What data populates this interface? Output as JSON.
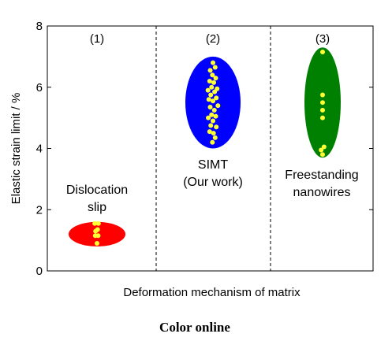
{
  "chart_data": {
    "type": "scatter",
    "title": "",
    "xlabel": "Deformation mechanism of matrix",
    "ylabel": "Elastic strain limit / %",
    "ylim": [
      0,
      8
    ],
    "yticks": [
      "0",
      "2",
      "4",
      "6",
      "8"
    ],
    "caption": "Color online",
    "colors": {
      "point": "#ffff33",
      "grid": "#000000"
    },
    "groups": [
      {
        "index_label": "(1)",
        "label_lines": [
          "Dislocation",
          "slip"
        ],
        "color": "#ff0000",
        "ellipse": {
          "y_min": 0.8,
          "y_max": 1.6
        },
        "points": [
          {
            "dx": -0.08,
            "y": 1.55
          },
          {
            "dx": 0.05,
            "y": 1.55
          },
          {
            "dx": -0.05,
            "y": 1.3
          },
          {
            "dx": 0.02,
            "y": 1.35
          },
          {
            "dx": -0.06,
            "y": 1.15
          },
          {
            "dx": 0.04,
            "y": 1.15
          },
          {
            "dx": 0.0,
            "y": 0.9
          }
        ]
      },
      {
        "index_label": "(2)",
        "label_lines": [
          "SIMT",
          "(Our work)"
        ],
        "color": "#0000ff",
        "ellipse": {
          "y_min": 4.0,
          "y_max": 7.0
        },
        "points": [
          {
            "dx": 0.0,
            "y": 6.8
          },
          {
            "dx": 0.08,
            "y": 6.65
          },
          {
            "dx": -0.1,
            "y": 6.55
          },
          {
            "dx": -0.02,
            "y": 6.4
          },
          {
            "dx": 0.1,
            "y": 6.3
          },
          {
            "dx": -0.12,
            "y": 6.2
          },
          {
            "dx": 0.03,
            "y": 6.15
          },
          {
            "dx": -0.05,
            "y": 6.0
          },
          {
            "dx": 0.15,
            "y": 5.95
          },
          {
            "dx": -0.18,
            "y": 5.9
          },
          {
            "dx": 0.06,
            "y": 5.85
          },
          {
            "dx": -0.08,
            "y": 5.75
          },
          {
            "dx": 0.12,
            "y": 5.65
          },
          {
            "dx": -0.15,
            "y": 5.6
          },
          {
            "dx": 0.0,
            "y": 5.55
          },
          {
            "dx": 0.18,
            "y": 5.4
          },
          {
            "dx": -0.1,
            "y": 5.35
          },
          {
            "dx": 0.05,
            "y": 5.25
          },
          {
            "dx": -0.05,
            "y": 5.1
          },
          {
            "dx": 0.1,
            "y": 5.05
          },
          {
            "dx": -0.17,
            "y": 5.0
          },
          {
            "dx": 0.0,
            "y": 4.9
          },
          {
            "dx": -0.08,
            "y": 4.75
          },
          {
            "dx": 0.12,
            "y": 4.7
          },
          {
            "dx": -0.12,
            "y": 4.55
          },
          {
            "dx": 0.02,
            "y": 4.5
          },
          {
            "dx": 0.08,
            "y": 4.35
          },
          {
            "dx": -0.02,
            "y": 4.2
          }
        ]
      },
      {
        "index_label": "(3)",
        "label_lines": [
          "Freestanding",
          "nanowires"
        ],
        "color": "#008000",
        "ellipse": {
          "y_min": 3.7,
          "y_max": 7.3
        },
        "points": [
          {
            "dx": 0.0,
            "y": 7.15
          },
          {
            "dx": 0.0,
            "y": 5.75
          },
          {
            "dx": 0.0,
            "y": 5.5
          },
          {
            "dx": 0.0,
            "y": 5.25
          },
          {
            "dx": 0.0,
            "y": 5.0
          },
          {
            "dx": 0.08,
            "y": 4.05
          },
          {
            "dx": -0.08,
            "y": 3.95
          },
          {
            "dx": 0.0,
            "y": 3.8
          }
        ]
      }
    ]
  }
}
